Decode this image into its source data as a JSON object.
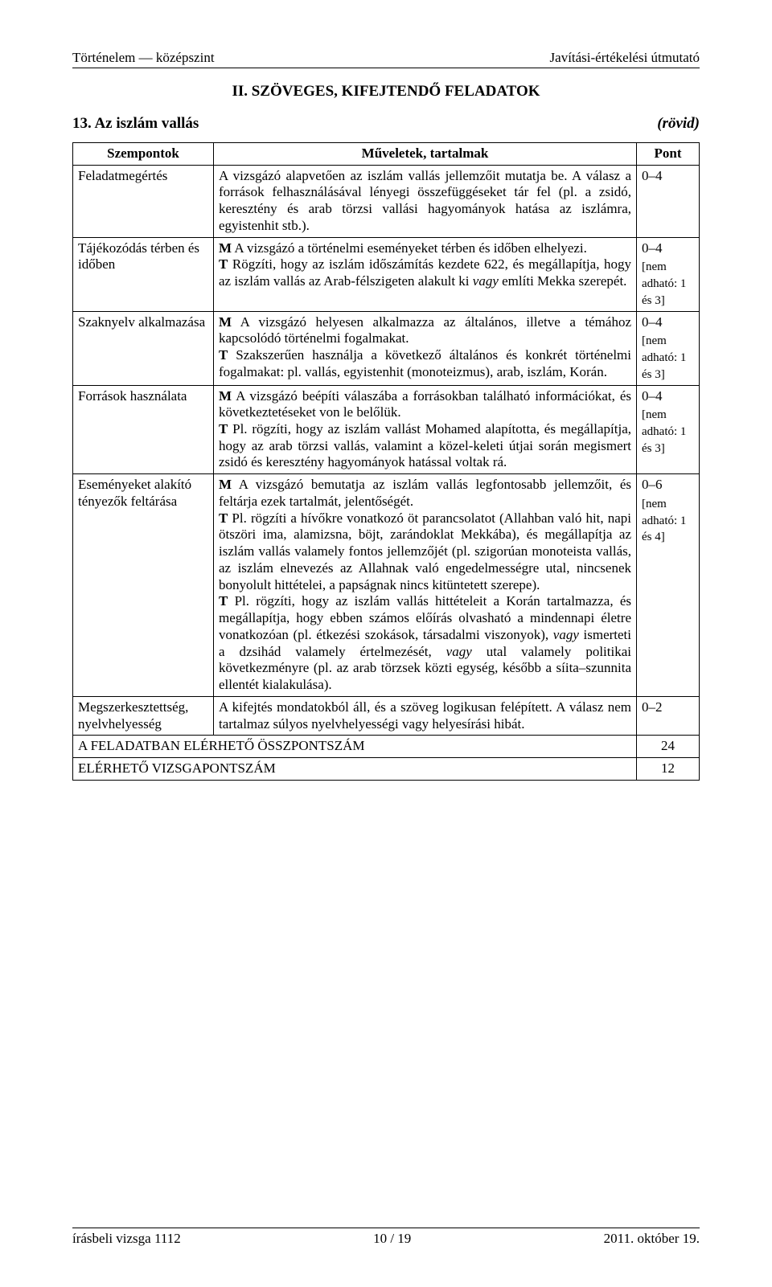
{
  "header": {
    "left": "Történelem — középszint",
    "right": "Javítási-értékelési útmutató"
  },
  "section_heading": "II. SZÖVEGES, KIFEJTENDŐ FELADATOK",
  "task": {
    "number_title": "13. Az iszlám vallás",
    "variant": "(rövid)"
  },
  "table": {
    "head_left": "Szempontok",
    "head_mid": "Műveletek, tartalmak",
    "head_right": "Pont",
    "rows": [
      {
        "left": "Feladatmegértés",
        "mid": "A vizsgázó alapvetően az iszlám vallás jellemzőit mutatja be.\nA válasz a források felhasználásával lényegi összefüggéseket tár fel (pl. a zsidó, keresztény és arab törzsi vallási hagyományok hatása az iszlámra, egyistenhit stb.).",
        "pont_range": "0–4",
        "pont_note": ""
      },
      {
        "left": "Tájékozódás térben és időben",
        "mid_html": "<b>M</b> A vizsgázó a történelmi eseményeket térben és időben elhelyezi.<br><b>T</b> Rögzíti, hogy az iszlám időszámítás kezdete 622, és megállapítja, hogy az iszlám vallás az Arab-félszigeten alakult ki <i>vagy</i> említi Mekka szerepét.",
        "pont_range": "0–4",
        "pont_note": "[nem adható: 1 és 3]"
      },
      {
        "left": "Szaknyelv alkalmazása",
        "mid_html": "<b>M</b> A vizsgázó helyesen alkalmazza az általános, illetve a témához kapcsolódó történelmi fogalmakat.<br><b>T</b> Szakszerűen használja a következő általános és konkrét történelmi fogalmakat: pl. vallás, egyistenhit (monoteizmus), arab, iszlám, Korán.",
        "pont_range": "0–4",
        "pont_note": "[nem adható: 1 és 3]"
      },
      {
        "left": "Források használata",
        "mid_html": "<b>M</b> A vizsgázó beépíti válaszába a forrásokban található információkat, és következtetéseket von le belőlük.<br><b>T</b> Pl. rögzíti, hogy az iszlám vallást Mohamed alapította, és megállapítja, hogy az arab törzsi vallás, valamint a közel-keleti útjai során megismert zsidó és keresztény hagyományok hatással voltak rá.",
        "pont_range": "0–4",
        "pont_note": "[nem adható: 1 és 3]"
      },
      {
        "left": "Eseményeket alakító tényezők feltárása",
        "mid_html": "<b>M</b> A vizsgázó bemutatja az iszlám vallás legfontosabb jellemzőit, és feltárja ezek tartalmát, jelentőségét.<br><b>T</b> Pl. rögzíti a hívőkre vonatkozó öt parancsolatot (Allahban való hit, napi ötszöri ima, alamizsna, böjt, zarándoklat Mekkába), és megállapítja az iszlám vallás valamely fontos jellemzőjét (pl. szigorúan monoteista vallás, az iszlám elnevezés az Allahnak való engedelmességre utal, nincsenek bonyolult hittételei, a papságnak nincs kitüntetett szerepe).<br><b>T</b> Pl. rögzíti, hogy az iszlám vallás hittételeit a Korán tartalmazza, és megállapítja, hogy ebben számos előírás olvasható a mindennapi életre vonatkozóan (pl. étkezési szokások, társadalmi viszonyok), <i>vagy</i> ismerteti a dzsihád valamely értelmezését, <i>vagy</i> utal valamely politikai következményre (pl. az arab törzsek közti egység, később a síita–szunnita ellentét kialakulása).",
        "pont_range": "0–6",
        "pont_note": "[nem adható: 1 és 4]"
      },
      {
        "left": "Megszerkesztettség, nyelvhelyesség",
        "mid": "A kifejtés mondatokból áll, és a szöveg logikusan felépített. A válasz nem tartalmaz súlyos nyelvhelyességi vagy helyesírási hibát.",
        "pont_range": "0–2",
        "pont_note": ""
      }
    ],
    "summary": [
      {
        "label": "A FELADATBAN ELÉRHETŐ ÖSSZPONTSZÁM",
        "value": "24"
      },
      {
        "label": "ELÉRHETŐ VIZSGAPONTSZÁM",
        "value": "12"
      }
    ]
  },
  "footer": {
    "left": "írásbeli vizsga 1112",
    "center": "10 / 19",
    "right": "2011. október 19."
  }
}
